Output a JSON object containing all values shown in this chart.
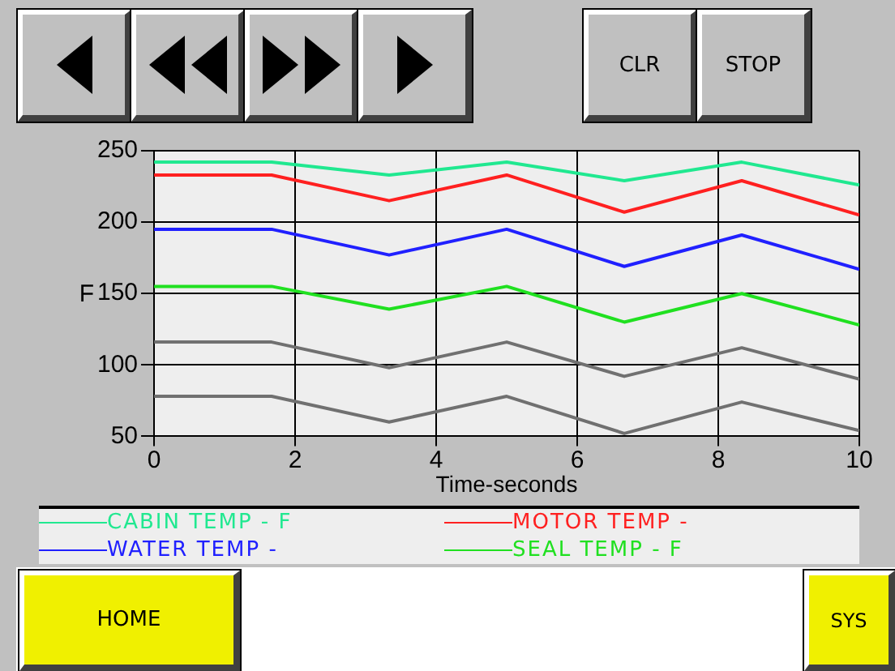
{
  "chart_data": {
    "type": "line",
    "xlabel": "Time-seconds",
    "ylabel": "F",
    "x": [
      0,
      1.667,
      3.333,
      5,
      6.667,
      8.333,
      10
    ],
    "series": [
      {
        "name": "CABIN TEMP - F",
        "color": "#20e890",
        "values": [
          242,
          242,
          233,
          242,
          229,
          242,
          226
        ]
      },
      {
        "name": "MOTOR TEMP -",
        "color": "#ff2020",
        "values": [
          233,
          233,
          215,
          233,
          207,
          229,
          205
        ]
      },
      {
        "name": "WATER TEMP -",
        "color": "#2020ff",
        "values": [
          195,
          195,
          177,
          195,
          169,
          191,
          167
        ]
      },
      {
        "name": "SEAL TEMP - F",
        "color": "#20e020",
        "values": [
          155,
          155,
          139,
          155,
          130,
          150,
          128
        ]
      },
      {
        "color": "#707070",
        "values": [
          116,
          116,
          98,
          116,
          92,
          112,
          90
        ]
      },
      {
        "color": "#707070",
        "values": [
          78,
          78,
          60,
          78,
          52,
          74,
          54
        ]
      }
    ],
    "xlim": [
      0,
      10
    ],
    "xticks": [
      0,
      2,
      4,
      6,
      8,
      10
    ],
    "ylim": [
      50,
      250
    ],
    "yticks": [
      50,
      100,
      150,
      200,
      250
    ],
    "grid": true,
    "legend": "bottom",
    "marker": "none",
    "line_style": "solid",
    "annotations": [
      "CLR",
      "STOP",
      "HOME",
      "SYS"
    ]
  }
}
